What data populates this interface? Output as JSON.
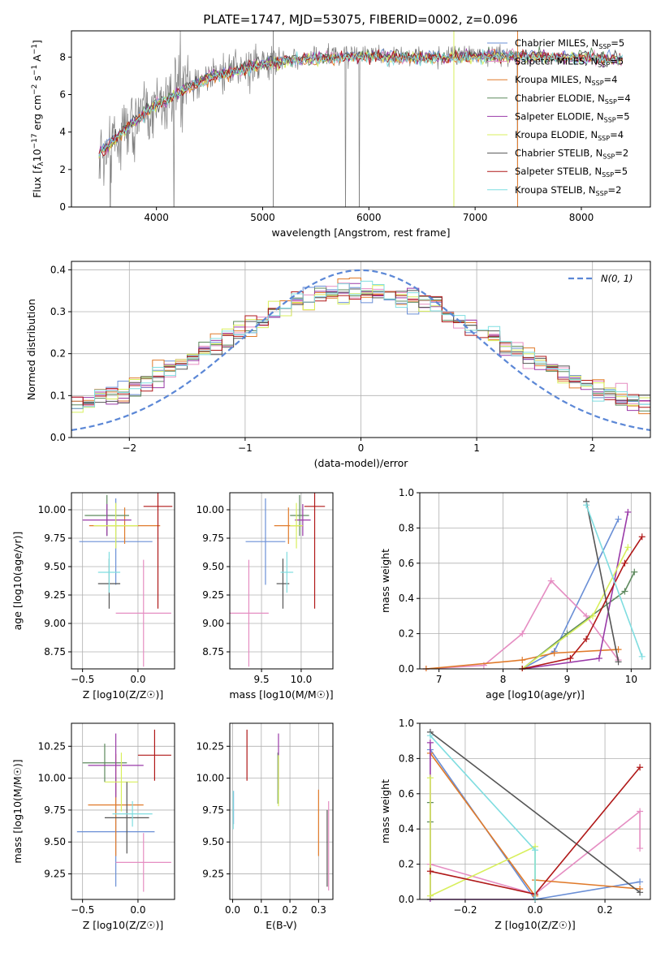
{
  "figure": {
    "title": "PLATE=1747, MJD=53075, FIBERID=0002, z=0.096",
    "series_names": [
      "Chabrier MILES, N_SSP=5",
      "Salpeter MILES, N_SSP=5",
      "Kroupa MILES, N_SSP=4",
      "Chabrier ELODIE, N_SSP=4",
      "Salpeter ELODIE, N_SSP=5",
      "Kroupa ELODIE, N_SSP=4",
      "Chabrier STELIB, N_SSP=2",
      "Salpeter STELIB, N_SSP=5",
      "Kroupa STELIB, N_SSP=2"
    ],
    "series_colors": [
      "#6a8fd6",
      "#e58dc2",
      "#e07a2a",
      "#5e8a5e",
      "#9a3aa8",
      "#d8ef5c",
      "#555555",
      "#b01818",
      "#7fdde0"
    ]
  },
  "chart_data": [
    {
      "id": "spectrum",
      "type": "line",
      "title": "PLATE=1747, MJD=53075, FIBERID=0002, z=0.096",
      "xlabel": "wavelength [Angstrom, rest frame]",
      "ylabel": "Flux [f_λ 10^-17 erg cm^-2 s^-1 A^-1]",
      "xlim": [
        3200,
        8650
      ],
      "ylim": [
        0,
        9.4
      ],
      "xticks": [
        "4000",
        "5000",
        "6000",
        "7000",
        "8000"
      ],
      "yticks": [
        "0",
        "2",
        "4",
        "6",
        "8"
      ],
      "legend": [
        "Chabrier MILES, N_SSP=5",
        "Salpeter MILES, N_SSP=5",
        "Kroupa MILES, N_SSP=4",
        "Chabrier ELODIE, N_SSP=4",
        "Salpeter ELODIE, N_SSP=5",
        "Kroupa ELODIE, N_SSP=4",
        "Chabrier STELIB, N_SSP=2",
        "Salpeter STELIB, N_SSP=5",
        "Kroupa STELIB, N_SSP=2"
      ],
      "legend_location": "upper right",
      "continuum_model": {
        "x": [
          3450,
          3700,
          4000,
          4500,
          5000,
          5500,
          6000,
          6500,
          7000,
          7500,
          8000,
          8400
        ],
        "y": [
          2.8,
          4.2,
          5.5,
          7.0,
          7.7,
          8.0,
          8.1,
          8.0,
          8.1,
          8.1,
          8.0,
          7.9
        ]
      }
    },
    {
      "id": "residuals",
      "type": "histogram",
      "xlabel": "(data-model)/error",
      "ylabel": "Normed distribution",
      "xlim": [
        -2.5,
        2.5
      ],
      "ylim": [
        0,
        0.42
      ],
      "xticks": [
        "−2",
        "−1",
        "0",
        "1",
        "2"
      ],
      "yticks": [
        "0.0",
        "0.1",
        "0.2",
        "0.3",
        "0.4"
      ],
      "reference_curve": {
        "label": "N(0, 1)",
        "mean": 0,
        "sigma": 1
      },
      "bin_width": 0.1,
      "grid": true
    },
    {
      "id": "age-vs-Z",
      "type": "errorbar",
      "xlabel": "Z [log10(Z/Z☉)]",
      "ylabel": "age  [log10(age/yr)]",
      "xlim": [
        -0.6,
        0.33
      ],
      "ylim": [
        8.6,
        10.15
      ],
      "xticks": [
        "−0.5",
        "0.0"
      ],
      "yticks": [
        "8.75",
        "9.00",
        "9.25",
        "9.50",
        "9.75",
        "10.00"
      ],
      "points": [
        {
          "x": -0.2,
          "xerr": 0.33,
          "y": 9.72,
          "yerr": 0.38
        },
        {
          "x": 0.05,
          "xerr": 0.25,
          "y": 9.09,
          "yerr": 0.47
        },
        {
          "x": -0.12,
          "xerr": 0.32,
          "y": 9.86,
          "yerr": 0.16
        },
        {
          "x": -0.28,
          "xerr": 0.2,
          "y": 9.95,
          "yerr": 0.18
        },
        {
          "x": -0.28,
          "xerr": 0.22,
          "y": 9.91,
          "yerr": 0.14
        },
        {
          "x": -0.2,
          "xerr": 0.2,
          "y": 9.86,
          "yerr": 0.2
        },
        {
          "x": -0.26,
          "xerr": 0.1,
          "y": 9.35,
          "yerr": 0.22
        },
        {
          "x": 0.18,
          "xerr": 0.13,
          "y": 10.03,
          "yerr": 0.9
        },
        {
          "x": -0.26,
          "xerr": 0.1,
          "y": 9.45,
          "yerr": 0.18
        }
      ]
    },
    {
      "id": "age-vs-mass",
      "type": "errorbar",
      "xlabel": "mass [log10(M/M☉)]",
      "ylabel": "",
      "xlim": [
        9.1,
        10.4
      ],
      "ylim": [
        8.6,
        10.15
      ],
      "xticks": [
        "9.5",
        "10.0"
      ],
      "yticks": [
        "8.75",
        "9.00",
        "9.25",
        "9.50",
        "9.75",
        "10.00"
      ],
      "points": [
        {
          "x": 9.55,
          "xerr": 0.25,
          "y": 9.72,
          "yerr": 0.38
        },
        {
          "x": 9.34,
          "xerr": 0.25,
          "y": 9.09,
          "yerr": 0.47
        },
        {
          "x": 9.84,
          "xerr": 0.18,
          "y": 9.86,
          "yerr": 0.16
        },
        {
          "x": 9.98,
          "xerr": 0.12,
          "y": 9.95,
          "yerr": 0.18
        },
        {
          "x": 10.02,
          "xerr": 0.1,
          "y": 9.91,
          "yerr": 0.14
        },
        {
          "x": 9.94,
          "xerr": 0.08,
          "y": 9.86,
          "yerr": 0.2
        },
        {
          "x": 9.77,
          "xerr": 0.08,
          "y": 9.35,
          "yerr": 0.22
        },
        {
          "x": 10.17,
          "xerr": 0.13,
          "y": 10.03,
          "yerr": 0.9
        },
        {
          "x": 9.82,
          "xerr": 0.08,
          "y": 9.45,
          "yerr": 0.18
        }
      ]
    },
    {
      "id": "weights-vs-age",
      "type": "line",
      "xlabel": "age  [log10(age/yr)]",
      "ylabel": "mass weight",
      "xlim": [
        6.7,
        10.3
      ],
      "ylim": [
        0,
        1.0
      ],
      "xticks": [
        "7",
        "8",
        "9",
        "10"
      ],
      "yticks": [
        "0.0",
        "0.2",
        "0.4",
        "0.6",
        "0.8",
        "1.0"
      ],
      "series": [
        {
          "x": [
            8.3,
            8.8,
            9.8
          ],
          "y": [
            0.0,
            0.1,
            0.85
          ]
        },
        {
          "x": [
            6.8,
            7.7,
            8.3,
            8.75,
            9.3,
            9.8
          ],
          "y": [
            0.0,
            0.02,
            0.2,
            0.5,
            0.3,
            0.05
          ]
        },
        {
          "x": [
            6.8,
            8.3,
            8.8,
            9.8
          ],
          "y": [
            0.0,
            0.05,
            0.09,
            0.11
          ]
        },
        {
          "x": [
            8.3,
            9.0,
            9.9,
            10.05
          ],
          "y": [
            0.0,
            0.2,
            0.44,
            0.55
          ]
        },
        {
          "x": [
            8.3,
            9.5,
            9.95
          ],
          "y": [
            0.0,
            0.06,
            0.89
          ]
        },
        {
          "x": [
            8.3,
            9.4,
            9.95
          ],
          "y": [
            0.0,
            0.3,
            0.69
          ]
        },
        {
          "x": [
            9.3,
            9.8
          ],
          "y": [
            0.95,
            0.04
          ]
        },
        {
          "x": [
            8.3,
            9.05,
            9.3,
            9.9,
            10.17
          ],
          "y": [
            0.0,
            0.06,
            0.17,
            0.6,
            0.75
          ]
        },
        {
          "x": [
            9.3,
            10.17
          ],
          "y": [
            0.93,
            0.07
          ]
        }
      ]
    },
    {
      "id": "mass-vs-Z",
      "type": "errorbar",
      "xlabel": "Z [log10(Z/Z☉)]",
      "ylabel": "mass [log10(M/M☉)]",
      "xlim": [
        -0.6,
        0.33
      ],
      "ylim": [
        9.05,
        10.43
      ],
      "xticks": [
        "−0.5",
        "0.0"
      ],
      "yticks": [
        "9.25",
        "9.50",
        "9.75",
        "10.00",
        "10.25"
      ],
      "points": [
        {
          "x": -0.2,
          "xerr": 0.35,
          "y": 9.58,
          "yerr": 0.43
        },
        {
          "x": 0.05,
          "xerr": 0.25,
          "y": 9.34,
          "yerr": 0.23
        },
        {
          "x": -0.2,
          "xerr": 0.25,
          "y": 9.79,
          "yerr": 0.4
        },
        {
          "x": -0.3,
          "xerr": 0.2,
          "y": 10.12,
          "yerr": 0.15
        },
        {
          "x": -0.2,
          "xerr": 0.25,
          "y": 10.1,
          "yerr": 0.25
        },
        {
          "x": -0.15,
          "xerr": 0.15,
          "y": 9.97,
          "yerr": 0.23
        },
        {
          "x": -0.1,
          "xerr": 0.2,
          "y": 9.69,
          "yerr": 0.28
        },
        {
          "x": 0.15,
          "xerr": 0.15,
          "y": 10.18,
          "yerr": 0.2
        },
        {
          "x": -0.05,
          "xerr": 0.18,
          "y": 9.72,
          "yerr": 0.1
        }
      ]
    },
    {
      "id": "mass-vs-EBV",
      "type": "errorbar",
      "xlabel": "E(B-V)",
      "ylabel": "",
      "xlim": [
        -0.01,
        0.35
      ],
      "ylim": [
        9.05,
        10.43
      ],
      "xticks": [
        "0.0",
        "0.1",
        "0.2",
        "0.3"
      ],
      "yticks": [
        "9.25",
        "9.50",
        "9.75",
        "10.00",
        "10.25"
      ],
      "points": [
        {
          "x": 0.003,
          "y": 9.77,
          "yerr": 0.13
        },
        {
          "x": 0.335,
          "y": 9.47,
          "yerr": 0.35
        },
        {
          "x": 0.3,
          "y": 9.65,
          "yerr": 0.26
        },
        {
          "x": 0.158,
          "y": 10.0,
          "yerr": 0.2
        },
        {
          "x": 0.16,
          "y": 10.13,
          "yerr": 0.22
        },
        {
          "x": 0.16,
          "y": 9.98,
          "yerr": 0.2
        },
        {
          "x": 0.33,
          "y": 9.45,
          "yerr": 0.3
        },
        {
          "x": 0.05,
          "y": 10.18,
          "yerr": 0.2
        },
        {
          "x": 0.002,
          "y": 9.75,
          "yerr": 0.15
        }
      ]
    },
    {
      "id": "weights-vs-Z",
      "type": "line",
      "xlabel": "Z [log10(Z/Z☉)]",
      "ylabel": "mass weight",
      "xlim": [
        -0.33,
        0.33
      ],
      "ylim": [
        0,
        1.0
      ],
      "xticks": [
        "−0.2",
        "0.0",
        "0.2"
      ],
      "yticks": [
        "0.0",
        "0.2",
        "0.4",
        "0.6",
        "0.8",
        "1.0"
      ],
      "series": [
        {
          "x": [
            -0.3,
            0.0,
            0.3
          ],
          "y": [
            0.85,
            0.0,
            0.1
          ]
        },
        {
          "x": [
            -0.3,
            0.0,
            0.3,
            0.3
          ],
          "y": [
            0.2,
            0.03,
            0.5,
            0.29
          ]
        },
        {
          "x": [
            -0.3,
            0.0,
            0.0,
            0.3
          ],
          "y": [
            0.83,
            0.02,
            0.11,
            0.06
          ]
        },
        {
          "x": [
            -0.3,
            -0.3,
            -0.3
          ],
          "y": [
            0.0,
            0.44,
            0.55
          ]
        },
        {
          "x": [
            -0.3,
            -0.3,
            0.0
          ],
          "y": [
            0.89,
            0.0,
            0.0
          ]
        },
        {
          "x": [
            -0.3,
            -0.3,
            0.0,
            0.0
          ],
          "y": [
            0.69,
            0.02,
            0.3,
            0.0
          ]
        },
        {
          "x": [
            -0.3,
            0.3
          ],
          "y": [
            0.95,
            0.04
          ]
        },
        {
          "x": [
            -0.3,
            0.0,
            0.3
          ],
          "y": [
            0.16,
            0.03,
            0.75
          ]
        },
        {
          "x": [
            -0.3,
            0.0,
            0.0
          ],
          "y": [
            0.93,
            0.28,
            0.0
          ]
        }
      ]
    }
  ]
}
